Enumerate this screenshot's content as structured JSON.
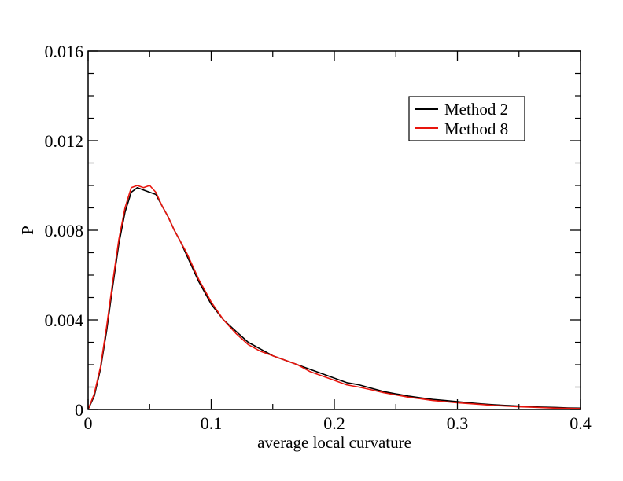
{
  "chart_data": {
    "type": "line",
    "title": "",
    "xlabel": "average local curvature",
    "ylabel": "P",
    "xlim": [
      0,
      0.4
    ],
    "ylim": [
      0,
      0.016
    ],
    "x_ticks": [
      0,
      0.1,
      0.2,
      0.3,
      0.4
    ],
    "x_tick_labels": [
      "0",
      "0.1",
      "0.2",
      "0.3",
      "0.4"
    ],
    "y_ticks": [
      0,
      0.004,
      0.008,
      0.012,
      0.016
    ],
    "y_tick_labels": [
      "0",
      "0.004",
      "0.008",
      "0.012",
      "0.016"
    ],
    "grid": false,
    "legend_position": "top-right",
    "series": [
      {
        "name": "Method 2",
        "color": "#000000",
        "x": [
          0,
          0.005,
          0.01,
          0.015,
          0.02,
          0.025,
          0.03,
          0.035,
          0.04,
          0.045,
          0.05,
          0.055,
          0.06,
          0.065,
          0.07,
          0.075,
          0.08,
          0.085,
          0.09,
          0.095,
          0.1,
          0.11,
          0.12,
          0.13,
          0.14,
          0.15,
          0.16,
          0.17,
          0.18,
          0.19,
          0.2,
          0.21,
          0.22,
          0.23,
          0.24,
          0.25,
          0.26,
          0.27,
          0.28,
          0.29,
          0.3,
          0.31,
          0.32,
          0.33,
          0.34,
          0.35,
          0.36,
          0.37,
          0.38,
          0.39,
          0.4
        ],
        "y": [
          0,
          0.0006,
          0.0018,
          0.0035,
          0.0055,
          0.0074,
          0.0088,
          0.0097,
          0.0099,
          0.0098,
          0.0097,
          0.0096,
          0.0091,
          0.0086,
          0.008,
          0.0075,
          0.0069,
          0.0063,
          0.0057,
          0.0052,
          0.0047,
          0.004,
          0.0035,
          0.003,
          0.0027,
          0.0024,
          0.0022,
          0.002,
          0.0018,
          0.0016,
          0.0014,
          0.0012,
          0.0011,
          0.00095,
          0.0008,
          0.0007,
          0.0006,
          0.00052,
          0.00045,
          0.0004,
          0.00035,
          0.0003,
          0.00025,
          0.00021,
          0.00018,
          0.00015,
          0.00012,
          0.0001,
          9e-05,
          7e-05,
          6e-05
        ]
      },
      {
        "name": "Method 8",
        "color": "#e8150d",
        "x": [
          0,
          0.005,
          0.01,
          0.015,
          0.02,
          0.025,
          0.03,
          0.035,
          0.04,
          0.045,
          0.05,
          0.055,
          0.06,
          0.065,
          0.07,
          0.075,
          0.08,
          0.085,
          0.09,
          0.095,
          0.1,
          0.11,
          0.12,
          0.13,
          0.14,
          0.15,
          0.16,
          0.17,
          0.18,
          0.19,
          0.2,
          0.21,
          0.22,
          0.23,
          0.24,
          0.25,
          0.26,
          0.27,
          0.28,
          0.29,
          0.3,
          0.31,
          0.32,
          0.33,
          0.34,
          0.35,
          0.36,
          0.37,
          0.38,
          0.39,
          0.4
        ],
        "y": [
          0,
          0.0007,
          0.0019,
          0.0037,
          0.0057,
          0.0076,
          0.009,
          0.0099,
          0.01,
          0.0099,
          0.01,
          0.0097,
          0.0091,
          0.0086,
          0.008,
          0.0075,
          0.007,
          0.0064,
          0.0058,
          0.0053,
          0.0048,
          0.004,
          0.0034,
          0.0029,
          0.0026,
          0.0024,
          0.0022,
          0.002,
          0.0017,
          0.0015,
          0.0013,
          0.0011,
          0.001,
          0.00088,
          0.00075,
          0.00065,
          0.00055,
          0.00048,
          0.0004,
          0.00035,
          0.0003,
          0.00026,
          0.00022,
          0.00018,
          0.00015,
          0.00012,
          0.0001,
          8e-05,
          6e-05,
          5e-05,
          4e-05
        ]
      }
    ]
  }
}
